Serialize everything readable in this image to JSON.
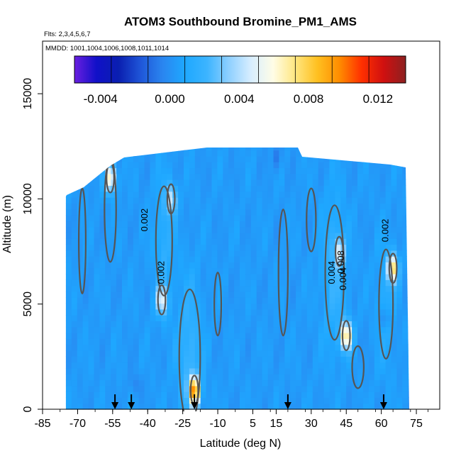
{
  "chart_data": {
    "type": "heatmap",
    "title": "ATOM3 Southbound Bromine_PM1_AMS",
    "flights_note": "Flts: 2,3,4,5,6,7",
    "dates_note": "MMDD: 1001,1004,1006,1008,1011,1014",
    "xlabel": "Latitude (deg N)",
    "ylabel": "Altitude (m)",
    "xlim": [
      -85,
      85
    ],
    "ylim": [
      0,
      17500
    ],
    "x_ticks": [
      -85,
      -70,
      -55,
      -40,
      -25,
      -10,
      5,
      15,
      30,
      45,
      60,
      75
    ],
    "y_ticks": [
      0,
      5000,
      10000,
      15000
    ],
    "colorbar": {
      "range": [
        -0.0055,
        0.0136
      ],
      "ticks": [
        -0.004,
        0.0,
        0.004,
        0.008,
        0.012
      ],
      "tick_labels": [
        "-0.004",
        "0.000",
        "0.004",
        "0.008",
        "0.012"
      ],
      "colors": [
        "#6a1fe0",
        "#1010c8",
        "#0a1fb0",
        "#1f56d8",
        "#2a86f0",
        "#1ea8ff",
        "#3cb4ff",
        "#8fd0ff",
        "#d8eeff",
        "#fffde6",
        "#ffe680",
        "#ffc020",
        "#ff8c00",
        "#ff3000",
        "#d01010",
        "#8c2020"
      ]
    },
    "contour_labels": [
      "0.002",
      "0.002",
      "0.004",
      "0.008",
      "0.002",
      "0.004"
    ],
    "profile_markers_lat": [
      -54,
      -47,
      -20,
      20,
      61
    ],
    "hotspots": [
      {
        "lat": -20,
        "alt": 900,
        "value": 0.01
      },
      {
        "lat": -56,
        "alt": 11000,
        "value": 0.007
      },
      {
        "lat": 45,
        "alt": 3500,
        "value": 0.008
      },
      {
        "lat": 65,
        "alt": 6700,
        "value": 0.007
      },
      {
        "lat": -34,
        "alt": 5200,
        "value": 0.005
      },
      {
        "lat": -30,
        "alt": 10000,
        "value": 0.004
      },
      {
        "lat": 42,
        "alt": 7500,
        "value": 0.004
      }
    ],
    "grid": false,
    "legend_position": "top"
  }
}
